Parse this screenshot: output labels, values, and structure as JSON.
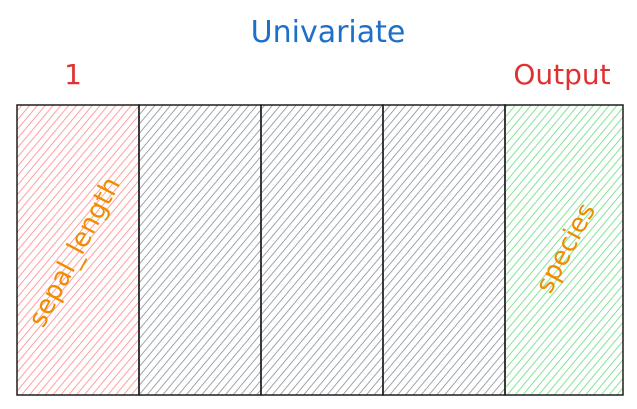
{
  "diagram": {
    "title": "Univariate",
    "input_marker": "1",
    "output_marker": "Output",
    "columns": [
      {
        "label": "sepal_length",
        "role": "input",
        "fill_color": "#ff8787"
      },
      {
        "label": "",
        "role": "unused",
        "fill_color": "#868e96"
      },
      {
        "label": "",
        "role": "unused",
        "fill_color": "#868e96"
      },
      {
        "label": "",
        "role": "unused",
        "fill_color": "#868e96"
      },
      {
        "label": "species",
        "role": "output",
        "fill_color": "#69db7c"
      }
    ]
  },
  "colors": {
    "title": "#1e6fc8",
    "markers": "#e03131",
    "labels": "#f08c00",
    "outline": "#1e1e1e"
  }
}
